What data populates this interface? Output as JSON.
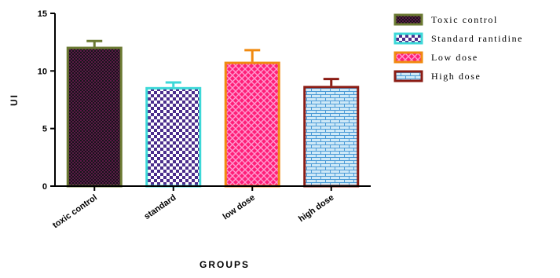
{
  "chart_data": {
    "type": "bar",
    "title": "",
    "xlabel": "GROUPS",
    "ylabel": "UI",
    "ylim": [
      0,
      15
    ],
    "yticks": [
      0,
      5,
      10,
      15
    ],
    "categories": [
      "toxic control",
      "standard",
      "low dose",
      "high dose"
    ],
    "values": [
      12.0,
      8.5,
      10.7,
      8.6
    ],
    "errors": [
      0.6,
      0.5,
      1.1,
      0.7
    ],
    "legend": {
      "placement": "right",
      "entries": [
        "Toxic control",
        "Standard rantidine",
        "Low dose",
        "High dose"
      ]
    },
    "colors": {
      "borders": [
        "#6b7a32",
        "#3dd8d8",
        "#f08a10",
        "#8b1c14"
      ],
      "fill_bg": [
        "#5a1a45",
        "#ffffff",
        "#ff1f78",
        "#cfe9f7"
      ],
      "fill_fg": [
        "#18141c",
        "#4b2d8c",
        "#ff9ad0",
        "#4a9ad6"
      ]
    },
    "grid": false
  }
}
